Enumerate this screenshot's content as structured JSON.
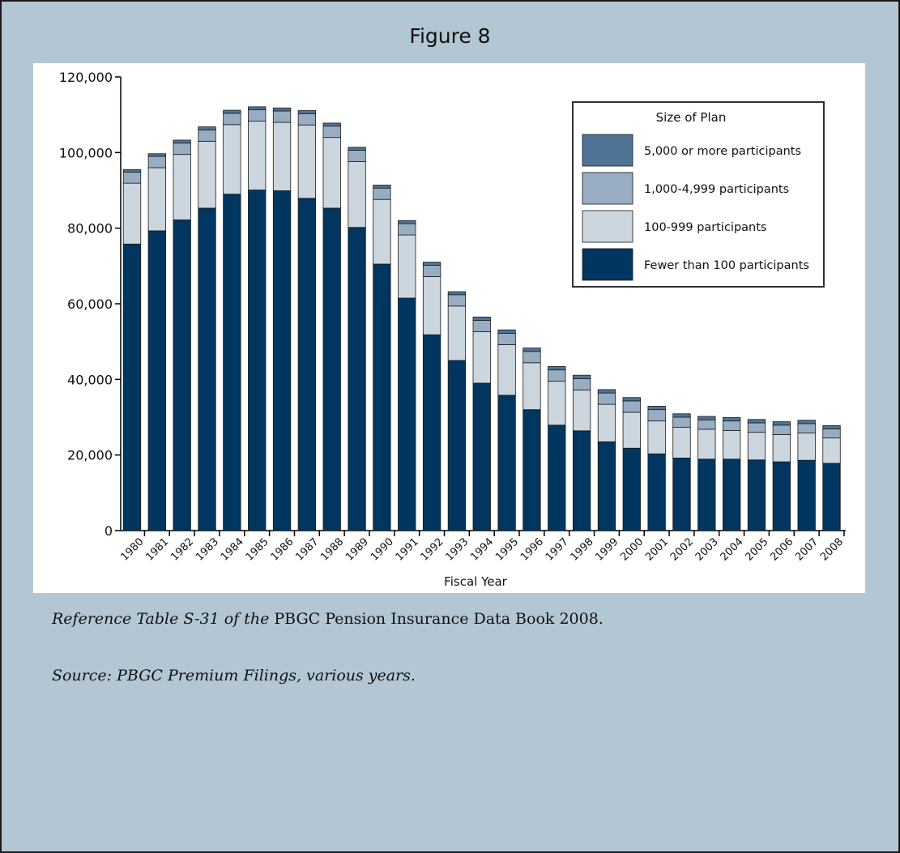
{
  "figure": {
    "title": "Figure 8"
  },
  "captions": {
    "line1_italic": "Reference Table S-31 of the",
    "line1_regular": " PBGC Pension Insurance Data Book 2008.",
    "line2": "Source: PBGC Premium Filings, various years."
  },
  "colors": {
    "frame_background": "#b3c6d3",
    "plot_background": "#ffffff",
    "series": [
      "#003660",
      "#cbd6df",
      "#98adc1",
      "#4f7395"
    ]
  },
  "chart_data": {
    "type": "bar",
    "stacked": true,
    "xlabel": "Fiscal Year",
    "ylabel": "",
    "ylim": [
      0,
      120000
    ],
    "yticks": [
      0,
      20000,
      40000,
      60000,
      80000,
      100000,
      120000
    ],
    "ytick_labels": [
      "0",
      "20,000",
      "40,000",
      "60,000",
      "80,000",
      "100,000",
      "120,000"
    ],
    "grid": false,
    "legend": {
      "title": "Size of Plan",
      "placement": "top-right",
      "order": [
        "5,000 or more participants",
        "1,000-4,999 participants",
        "100-999 participants",
        "Fewer than 100 participants"
      ]
    },
    "categories": [
      "1980",
      "1981",
      "1982",
      "1983",
      "1984",
      "1985",
      "1986",
      "1987",
      "1988",
      "1989",
      "1990",
      "1991",
      "1992",
      "1993",
      "1994",
      "1995",
      "1996",
      "1997",
      "1998",
      "1999",
      "2000",
      "2001",
      "2002",
      "2003",
      "2004",
      "2005",
      "2006",
      "2007",
      "2008"
    ],
    "series": [
      {
        "name": "Fewer than 100 participants",
        "color": "#003660",
        "values": [
          75800,
          79300,
          82200,
          85300,
          89000,
          90100,
          89900,
          87900,
          85300,
          80200,
          70500,
          61500,
          51800,
          45000,
          39000,
          35800,
          32000,
          27900,
          26400,
          23500,
          21800,
          20300,
          19200,
          18900,
          18900,
          18700,
          18200,
          18600,
          17800
        ]
      },
      {
        "name": "100-999 participants",
        "color": "#cbd6df",
        "values": [
          16100,
          16700,
          17300,
          17700,
          18400,
          18200,
          18100,
          19400,
          18700,
          17400,
          17100,
          16700,
          15400,
          14400,
          13600,
          13400,
          12400,
          11600,
          10800,
          9900,
          9500,
          8700,
          8100,
          7900,
          7600,
          7300,
          7200,
          7200,
          6700
        ]
      },
      {
        "name": "1,000-4,999 participants",
        "color": "#98adc1",
        "values": [
          2900,
          3000,
          3000,
          3000,
          3000,
          3000,
          3000,
          3000,
          3000,
          3000,
          3000,
          3000,
          3000,
          3000,
          3000,
          3000,
          3000,
          3000,
          3000,
          3000,
          3000,
          3000,
          2700,
          2500,
          2500,
          2500,
          2500,
          2500,
          2400
        ]
      },
      {
        "name": "5,000 or more participants",
        "color": "#4f7395",
        "values": [
          700,
          700,
          800,
          800,
          800,
          800,
          800,
          800,
          800,
          800,
          800,
          800,
          800,
          800,
          900,
          900,
          900,
          900,
          900,
          900,
          900,
          900,
          900,
          900,
          900,
          900,
          900,
          900,
          900
        ]
      }
    ]
  }
}
